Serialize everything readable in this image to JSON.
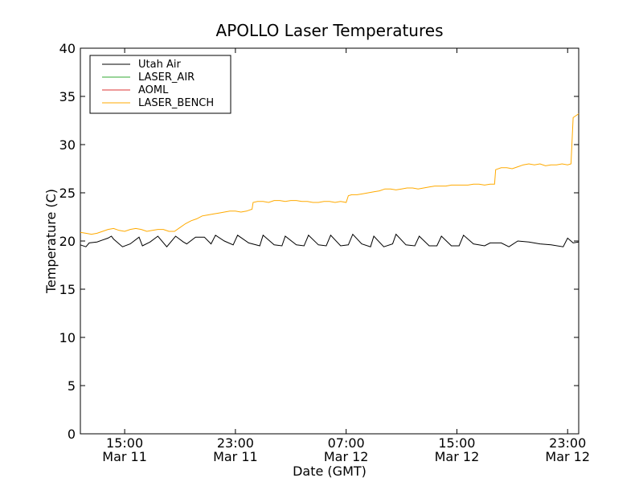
{
  "chart_data": {
    "type": "line",
    "title": "APOLLO Laser Temperatures",
    "xlabel": "Date (GMT)",
    "ylabel": "Temperature (C)",
    "xlim": [
      0,
      45
    ],
    "ylim": [
      0,
      40
    ],
    "yticks": [
      0,
      5,
      10,
      15,
      20,
      25,
      30,
      35,
      40
    ],
    "xticks": [
      {
        "x": 4,
        "time": "15:00",
        "date": "Mar 11"
      },
      {
        "x": 14,
        "time": "23:00",
        "date": "Mar 11"
      },
      {
        "x": 24,
        "time": "07:00",
        "date": "Mar 12"
      },
      {
        "x": 34,
        "time": "15:00",
        "date": "Mar 12"
      },
      {
        "x": 44,
        "time": "23:00",
        "date": "Mar 12"
      }
    ],
    "legend_position": "top-left",
    "series": [
      {
        "name": "Utah Air",
        "color": "#000000",
        "x": [
          0,
          0.5,
          0.8,
          1.5,
          2.5,
          2.8,
          3,
          3.8,
          4.5,
          5.3,
          5.6,
          6.3,
          7,
          7.8,
          8.6,
          9.3,
          9.6,
          10.4,
          11.2,
          11.8,
          12.2,
          13,
          13.8,
          14.2,
          15.2,
          16.2,
          16.5,
          17.5,
          18.2,
          18.5,
          19.5,
          20.2,
          20.6,
          21.5,
          22.2,
          22.6,
          23.5,
          24.2,
          24.6,
          25.4,
          26.2,
          26.5,
          27.4,
          28.2,
          28.5,
          29.4,
          30.2,
          30.6,
          31.5,
          32.2,
          32.6,
          33.5,
          34.2,
          34.6,
          35.5,
          36.5,
          37,
          38,
          38.7,
          39.5,
          40.5,
          41.5,
          42.5,
          43.6,
          44,
          44.5,
          45
        ],
        "y": [
          19.6,
          19.4,
          19.8,
          19.9,
          20.3,
          20.5,
          20.2,
          19.4,
          19.7,
          20.4,
          19.5,
          19.9,
          20.5,
          19.4,
          20.5,
          19.9,
          19.7,
          20.4,
          20.4,
          19.7,
          20.6,
          20.0,
          19.6,
          20.6,
          19.8,
          19.5,
          20.6,
          19.6,
          19.5,
          20.5,
          19.6,
          19.5,
          20.6,
          19.6,
          19.5,
          20.6,
          19.5,
          19.6,
          20.7,
          19.7,
          19.4,
          20.5,
          19.4,
          19.7,
          20.7,
          19.6,
          19.5,
          20.5,
          19.5,
          19.5,
          20.5,
          19.5,
          19.5,
          20.6,
          19.7,
          19.5,
          19.8,
          19.8,
          19.4,
          20.0,
          19.9,
          19.7,
          19.6,
          19.4,
          20.3,
          19.8,
          19.9
        ]
      },
      {
        "name": "LASER_AIR",
        "color": "#33aa33",
        "x": [],
        "y": []
      },
      {
        "name": "AOML",
        "color": "#dd3333",
        "x": [],
        "y": []
      },
      {
        "name": "LASER_BENCH",
        "color": "#ffaa00",
        "x": [
          0,
          0.5,
          1,
          1.5,
          2,
          2.5,
          3,
          3.5,
          4,
          4.5,
          5,
          5.5,
          6,
          6.5,
          7,
          7.5,
          8,
          8.5,
          9,
          9.5,
          10,
          10.5,
          11,
          11.5,
          12,
          12.5,
          13,
          13.5,
          14,
          14.5,
          15,
          15.5,
          15.6,
          16,
          16.5,
          17,
          17.5,
          18,
          18.5,
          19,
          19.5,
          20,
          20.5,
          21,
          21.5,
          22,
          22.5,
          23,
          23.5,
          24,
          24.2,
          24.5,
          25,
          25.5,
          26,
          26.5,
          27,
          27.5,
          28,
          28.5,
          29,
          29.5,
          30,
          30.5,
          31,
          31.5,
          32,
          32.5,
          33,
          33.5,
          34,
          34.5,
          35,
          35.5,
          36,
          36.5,
          37,
          37.4,
          37.5,
          38,
          38.5,
          39,
          39.5,
          40,
          40.5,
          41,
          41.5,
          42,
          42.5,
          43,
          43.5,
          44,
          44.3,
          44.5,
          45
        ],
        "y": [
          20.9,
          20.8,
          20.7,
          20.8,
          21,
          21.2,
          21.3,
          21.1,
          21,
          21.2,
          21.3,
          21.2,
          21,
          21.1,
          21.2,
          21.2,
          21,
          21,
          21.4,
          21.8,
          22.1,
          22.3,
          22.6,
          22.7,
          22.8,
          22.9,
          23,
          23.1,
          23.1,
          23.0,
          23.1,
          23.3,
          24.0,
          24.1,
          24.1,
          24.0,
          24.2,
          24.2,
          24.1,
          24.2,
          24.2,
          24.1,
          24.1,
          24.0,
          24.0,
          24.1,
          24.1,
          24.0,
          24.1,
          24.0,
          24.7,
          24.8,
          24.8,
          24.9,
          25.0,
          25.1,
          25.2,
          25.4,
          25.4,
          25.3,
          25.4,
          25.5,
          25.5,
          25.4,
          25.5,
          25.6,
          25.7,
          25.7,
          25.7,
          25.8,
          25.8,
          25.8,
          25.8,
          25.9,
          25.9,
          25.8,
          25.9,
          25.9,
          27.4,
          27.6,
          27.6,
          27.5,
          27.7,
          27.9,
          28.0,
          27.9,
          28.0,
          27.8,
          27.9,
          27.9,
          28.0,
          27.9,
          28.0,
          32.8,
          33.2
        ]
      }
    ]
  }
}
